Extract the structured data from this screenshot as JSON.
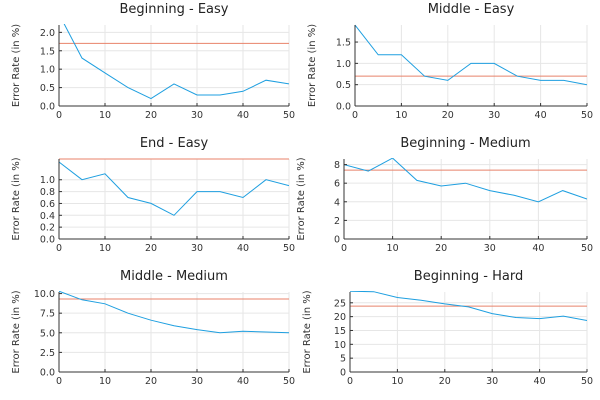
{
  "chart_data": [
    {
      "type": "line",
      "title": "Beginning - Easy",
      "ylabel": "Error Rate (in %)",
      "x": [
        0,
        5,
        10,
        15,
        20,
        25,
        30,
        35,
        40,
        45,
        50
      ],
      "y": [
        2.5,
        1.3,
        0.9,
        0.5,
        0.2,
        0.6,
        0.3,
        0.3,
        0.4,
        0.7,
        0.6
      ],
      "reference": 1.7,
      "xlim": [
        0,
        50
      ],
      "ylim": [
        0,
        2.2
      ],
      "xticks": [
        0,
        10,
        20,
        30,
        40,
        50
      ],
      "yticks": [
        0.0,
        0.5,
        1.0,
        1.5,
        2.0
      ],
      "ytick_labels": [
        "0.0",
        "0.5",
        "1.0",
        "1.5",
        "2.0"
      ],
      "grid": true
    },
    {
      "type": "line",
      "title": "Middle - Easy",
      "ylabel": "Error Rate (in %)",
      "x": [
        0,
        5,
        10,
        15,
        20,
        25,
        30,
        35,
        40,
        45,
        50
      ],
      "y": [
        1.9,
        1.2,
        1.2,
        0.7,
        0.6,
        1.0,
        1.0,
        0.7,
        0.6,
        0.6,
        0.5
      ],
      "reference": 0.7,
      "xlim": [
        0,
        50
      ],
      "ylim": [
        0,
        1.9
      ],
      "xticks": [
        0,
        10,
        20,
        30,
        40,
        50
      ],
      "yticks": [
        0.0,
        0.5,
        1.0,
        1.5
      ],
      "ytick_labels": [
        "0.0",
        "0.5",
        "1.0",
        "1.5"
      ],
      "grid": true
    },
    {
      "type": "line",
      "title": "End - Easy",
      "ylabel": "Error Rate (in %)",
      "x": [
        0,
        5,
        10,
        15,
        20,
        25,
        30,
        35,
        40,
        45,
        50
      ],
      "y": [
        1.3,
        1.0,
        1.1,
        0.7,
        0.6,
        0.4,
        0.8,
        0.8,
        0.7,
        1.0,
        0.9
      ],
      "reference": 1.35,
      "xlim": [
        0,
        50
      ],
      "ylim": [
        0,
        1.35
      ],
      "xticks": [
        0,
        10,
        20,
        30,
        40,
        50
      ],
      "yticks": [
        0.0,
        0.2,
        0.4,
        0.6,
        0.8,
        1.0
      ],
      "ytick_labels": [
        "0.0",
        "0.2",
        "0.4",
        "0.6",
        "0.8",
        "1.0"
      ],
      "grid": true
    },
    {
      "type": "line",
      "title": "Beginning - Medium",
      "ylabel": "Error Rate (in %)",
      "x": [
        0,
        5,
        10,
        15,
        20,
        25,
        30,
        35,
        40,
        45,
        50
      ],
      "y": [
        8.0,
        7.3,
        8.7,
        6.3,
        5.7,
        6.0,
        5.2,
        4.7,
        4.0,
        5.2,
        4.3
      ],
      "reference": 7.4,
      "xlim": [
        0,
        50
      ],
      "ylim": [
        0,
        8.6
      ],
      "xticks": [
        0,
        10,
        20,
        30,
        40,
        50
      ],
      "yticks": [
        0,
        2,
        4,
        6,
        8
      ],
      "ytick_labels": [
        "0",
        "2",
        "4",
        "6",
        "8"
      ],
      "grid": true
    },
    {
      "type": "line",
      "title": "Middle - Medium",
      "ylabel": "Error Rate (in %)",
      "x": [
        0,
        5,
        10,
        15,
        20,
        25,
        30,
        35,
        40,
        45,
        50
      ],
      "y": [
        10.3,
        9.2,
        8.7,
        7.5,
        6.6,
        5.9,
        5.4,
        5.0,
        5.2,
        5.1,
        5.0
      ],
      "reference": 9.3,
      "xlim": [
        0,
        50
      ],
      "ylim": [
        0,
        10.2
      ],
      "xticks": [
        0,
        10,
        20,
        30,
        40,
        50
      ],
      "yticks": [
        0.0,
        2.5,
        5.0,
        7.5,
        10.0
      ],
      "ytick_labels": [
        "0.0",
        "2.5",
        "5.0",
        "7.5",
        "10.0"
      ],
      "grid": true
    },
    {
      "type": "line",
      "title": "Beginning - Hard",
      "ylabel": "Error Rate (in %)",
      "x": [
        0,
        5,
        10,
        15,
        20,
        25,
        30,
        35,
        40,
        45,
        50
      ],
      "y": [
        29.2,
        29.0,
        26.9,
        25.9,
        24.6,
        23.5,
        21.1,
        19.7,
        19.3,
        20.2,
        18.6
      ],
      "reference": 23.8,
      "xlim": [
        0,
        50
      ],
      "ylim": [
        0,
        28.9
      ],
      "xticks": [
        0,
        10,
        20,
        30,
        40,
        50
      ],
      "yticks": [
        0,
        5,
        10,
        15,
        20,
        25
      ],
      "ytick_labels": [
        "0",
        "5",
        "10",
        "15",
        "20",
        "25"
      ],
      "grid": true
    }
  ],
  "colors": {
    "series": "#1e9fe0",
    "reference": "#e8826a"
  }
}
